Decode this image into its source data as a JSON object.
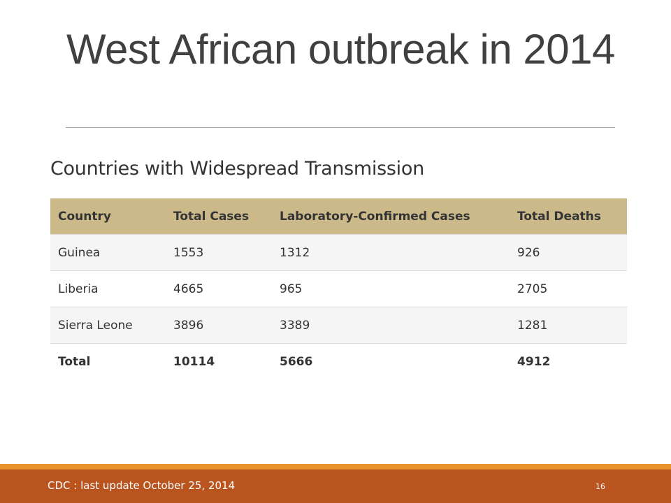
{
  "slide": {
    "title": "West African outbreak in 2014",
    "section_heading": "Countries with Widespread Transmission",
    "table": {
      "headers": [
        "Country",
        "Total Cases",
        "Laboratory-Confirmed Cases",
        "Total Deaths"
      ],
      "rows": [
        [
          "Guinea",
          "1553",
          "1312",
          "926"
        ],
        [
          "Liberia",
          "4665",
          "965",
          "2705"
        ],
        [
          "Sierra Leone",
          "3896",
          "3389",
          "1281"
        ]
      ],
      "total_row": [
        "Total",
        "10114",
        "5666",
        "4912"
      ]
    },
    "footer": {
      "source": "CDC : last update October 25, 2014",
      "page_number": "16"
    }
  },
  "colors": {
    "header_fill": "#cbb98a",
    "footer_band": "#b9541f",
    "footer_accent": "#e6942a",
    "title_text": "#404040"
  }
}
